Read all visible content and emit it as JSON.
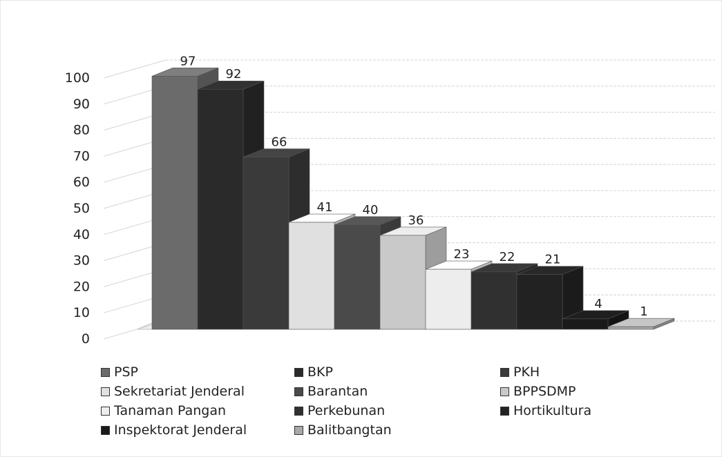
{
  "chart_data": {
    "type": "bar",
    "categories": [
      "PSP",
      "BKP",
      "PKH",
      "Sekretariat Jenderal",
      "Barantan",
      "BPPSDMP",
      "Tanaman Pangan",
      "Perkebunan",
      "Hortikultura",
      "Inspektorat Jenderal",
      "Balitbangtan"
    ],
    "values": [
      97,
      92,
      66,
      41,
      40,
      36,
      23,
      22,
      21,
      4,
      1
    ],
    "title": "",
    "xlabel": "",
    "ylabel": "",
    "ylim": [
      0,
      100
    ],
    "yticks": [
      "0",
      "10",
      "20",
      "30",
      "40",
      "50",
      "60",
      "70",
      "80",
      "90",
      "100"
    ],
    "grid": true,
    "legend_position": "bottom",
    "colors": [
      "#6b6b6b",
      "#2a2a2a",
      "#3a3a3a",
      "#e0e0e0",
      "#4a4a4a",
      "#c9c9c9",
      "#ededed",
      "#303030",
      "#222222",
      "#1a1a1a",
      "#a8a8a8"
    ]
  },
  "legend": {
    "items": [
      "PSP",
      "BKP",
      "PKH",
      "Sekretariat Jenderal",
      "Barantan",
      "BPPSDMP",
      "Tanaman Pangan",
      "Perkebunan",
      "Hortikultura",
      "Inspektorat Jenderal",
      "Balitbangtan"
    ]
  }
}
